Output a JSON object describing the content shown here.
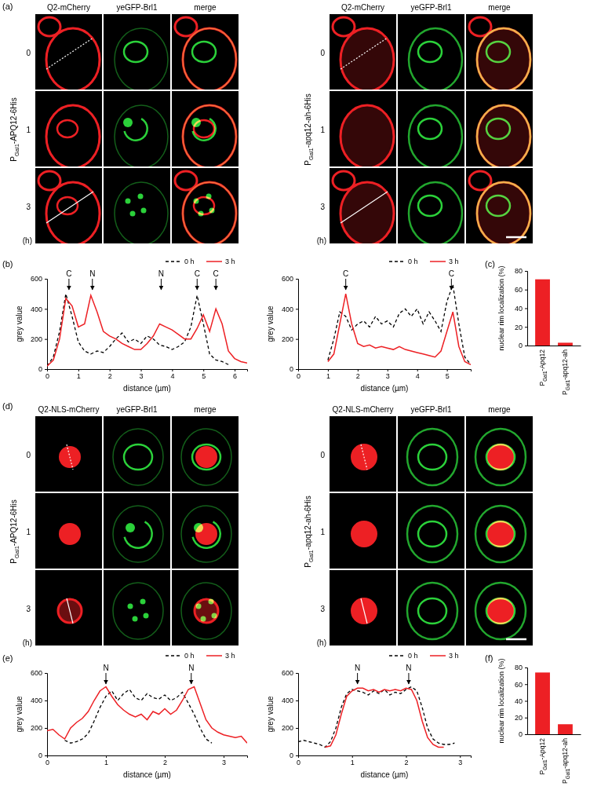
{
  "chart_data": [
    {
      "type": "line",
      "xlabel": "distance (µm)",
      "ylabel": "grey value",
      "x": [
        0,
        0.2,
        0.4,
        0.6,
        0.8,
        1,
        1.2,
        1.4,
        1.6,
        1.8,
        2,
        2.2,
        2.4,
        2.6,
        2.8,
        3,
        3.2,
        3.4,
        3.6,
        3.8,
        4,
        4.2,
        4.4,
        4.6,
        4.8,
        5,
        5.2,
        5.4,
        5.6,
        5.8,
        6,
        6.2,
        6.4
      ],
      "xlim": [
        0,
        6.4
      ],
      "xticks": [
        0,
        1,
        2,
        3,
        4,
        5,
        6
      ],
      "ylim": [
        0,
        600
      ],
      "yticks": [
        0,
        200,
        400,
        600
      ],
      "legend": "upper right",
      "series": [
        {
          "name": "0 h",
          "color": "#000000",
          "line_style": "dashed",
          "values": [
            20,
            80,
            250,
            500,
            350,
            180,
            120,
            100,
            120,
            110,
            150,
            200,
            240,
            180,
            200,
            170,
            220,
            200,
            160,
            150,
            130,
            150,
            180,
            280,
            490,
            300,
            100,
            60,
            50,
            30,
            null,
            null,
            null
          ]
        },
        {
          "name": "3 h",
          "color": "#ed2024",
          "line_style": "solid",
          "values": [
            20,
            60,
            200,
            470,
            420,
            280,
            300,
            490,
            380,
            250,
            220,
            200,
            170,
            150,
            130,
            130,
            170,
            220,
            300,
            280,
            260,
            230,
            200,
            200,
            270,
            360,
            250,
            400,
            300,
            120,
            70,
            50,
            40
          ]
        }
      ],
      "annotations": [
        {
          "text": "C",
          "x": 0.7
        },
        {
          "text": "N",
          "x": 1.45
        },
        {
          "text": "N",
          "x": 3.65
        },
        {
          "text": "C",
          "x": 4.8
        },
        {
          "text": "C",
          "x": 5.4
        }
      ]
    },
    {
      "type": "line",
      "xlabel": "distance (µm)",
      "ylabel": "grey value",
      "x": [
        0,
        0.2,
        0.4,
        0.6,
        0.8,
        1,
        1.2,
        1.4,
        1.6,
        1.8,
        2,
        2.2,
        2.4,
        2.6,
        2.8,
        3,
        3.2,
        3.4,
        3.6,
        3.8,
        4,
        4.2,
        4.4,
        4.6,
        4.8,
        5,
        5.2,
        5.4,
        5.6,
        5.8
      ],
      "xlim": [
        0,
        5.8
      ],
      "xticks": [
        0,
        1,
        2,
        3,
        4,
        5
      ],
      "ylim": [
        0,
        600
      ],
      "yticks": [
        0,
        200,
        400,
        600
      ],
      "legend": "upper right",
      "series": [
        {
          "name": "0 h",
          "color": "#000000",
          "line_style": "dashed",
          "values": [
            null,
            null,
            null,
            null,
            null,
            60,
            200,
            380,
            350,
            260,
            300,
            320,
            280,
            350,
            300,
            320,
            280,
            370,
            400,
            350,
            400,
            300,
            380,
            320,
            250,
            450,
            560,
            300,
            80,
            30
          ]
        },
        {
          "name": "3 h",
          "color": "#ed2024",
          "line_style": "solid",
          "values": [
            null,
            null,
            null,
            null,
            null,
            50,
            100,
            300,
            500,
            300,
            170,
            150,
            160,
            140,
            150,
            140,
            130,
            150,
            130,
            120,
            110,
            100,
            90,
            80,
            120,
            250,
            380,
            150,
            50,
            30
          ]
        }
      ],
      "annotations": [
        {
          "text": "C",
          "x": 1.6
        },
        {
          "text": "C",
          "x": 5.15
        }
      ]
    },
    {
      "type": "bar",
      "ylabel": "nuclear rim localization (%)",
      "categories": [
        "PGal1-Apq12",
        "PGal1-apq12-ah"
      ],
      "values": [
        71,
        3
      ],
      "color": "#ed2024",
      "ylim": [
        0,
        80
      ],
      "yticks": [
        0,
        20,
        40,
        60,
        80
      ]
    },
    {
      "type": "line",
      "xlabel": "distance (µm)",
      "ylabel": "grey value",
      "x": [
        0,
        0.1,
        0.2,
        0.3,
        0.4,
        0.5,
        0.6,
        0.7,
        0.8,
        0.9,
        1,
        1.1,
        1.2,
        1.3,
        1.4,
        1.5,
        1.6,
        1.7,
        1.8,
        1.9,
        2,
        2.1,
        2.2,
        2.3,
        2.4,
        2.5,
        2.6,
        2.7,
        2.8,
        2.9,
        3,
        3.1,
        3.2,
        3.3,
        3.4
      ],
      "xlim": [
        0,
        3.4
      ],
      "xticks": [
        0,
        1,
        2,
        3
      ],
      "ylim": [
        0,
        600
      ],
      "yticks": [
        0,
        200,
        400,
        600
      ],
      "legend": "upper right",
      "series": [
        {
          "name": "0 h",
          "color": "#000000",
          "line_style": "dashed",
          "values": [
            null,
            null,
            null,
            110,
            90,
            100,
            120,
            160,
            250,
            350,
            430,
            470,
            400,
            450,
            480,
            420,
            400,
            450,
            420,
            410,
            440,
            400,
            420,
            460,
            380,
            300,
            200,
            120,
            90,
            null,
            null,
            null,
            null,
            null,
            null
          ]
        },
        {
          "name": "3 h",
          "color": "#ed2024",
          "line_style": "solid",
          "values": [
            180,
            190,
            150,
            120,
            200,
            240,
            270,
            320,
            400,
            470,
            500,
            430,
            370,
            330,
            300,
            280,
            300,
            260,
            320,
            300,
            340,
            300,
            330,
            400,
            480,
            500,
            380,
            260,
            200,
            170,
            150,
            140,
            130,
            140,
            90
          ]
        }
      ],
      "annotations": [
        {
          "text": "N",
          "x": 1.0
        },
        {
          "text": "N",
          "x": 2.45
        }
      ]
    },
    {
      "type": "line",
      "xlabel": "distance (µm)",
      "ylabel": "grey value",
      "x": [
        0,
        0.1,
        0.2,
        0.3,
        0.4,
        0.5,
        0.6,
        0.7,
        0.8,
        0.9,
        1,
        1.1,
        1.2,
        1.3,
        1.4,
        1.5,
        1.6,
        1.7,
        1.8,
        1.9,
        2,
        2.1,
        2.2,
        2.3,
        2.4,
        2.5,
        2.6,
        2.7,
        2.8,
        2.9,
        3,
        3.1,
        3.2
      ],
      "xlim": [
        0,
        3.2
      ],
      "xticks": [
        0,
        1,
        2,
        3
      ],
      "ylim": [
        0,
        600
      ],
      "yticks": [
        0,
        200,
        400,
        600
      ],
      "legend": "upper right",
      "series": [
        {
          "name": "0 h",
          "color": "#000000",
          "line_style": "dashed",
          "values": [
            100,
            110,
            100,
            90,
            80,
            60,
            100,
            200,
            350,
            450,
            480,
            470,
            460,
            440,
            470,
            450,
            480,
            440,
            460,
            450,
            480,
            500,
            470,
            350,
            200,
            120,
            90,
            80,
            80,
            90,
            null,
            null,
            null
          ]
        },
        {
          "name": "3 h",
          "color": "#ed2024",
          "line_style": "solid",
          "values": [
            null,
            null,
            null,
            null,
            null,
            60,
            70,
            150,
            300,
            430,
            470,
            490,
            490,
            470,
            480,
            460,
            480,
            470,
            480,
            470,
            490,
            480,
            400,
            250,
            130,
            80,
            60,
            60,
            null,
            null,
            null,
            null,
            null
          ]
        }
      ],
      "annotations": [
        {
          "text": "N",
          "x": 1.1
        },
        {
          "text": "N",
          "x": 2.05
        }
      ]
    },
    {
      "type": "bar",
      "ylabel": "nuclear rim localization (%)",
      "categories": [
        "PGal1-Apq12",
        "PGal1-apq12-ah"
      ],
      "values": [
        74,
        12
      ],
      "color": "#ed2024",
      "ylim": [
        0,
        80
      ],
      "yticks": [
        0,
        20,
        40,
        60,
        80
      ]
    }
  ],
  "image_panels": [
    {
      "row_label": "PGal1-APQ12-6His",
      "columns": [
        "Q2-mCherry",
        "yeGFP-Brl1",
        "merge"
      ],
      "times": [
        "0",
        "1",
        "3"
      ],
      "time_unit": "(h)"
    },
    {
      "row_label": "PGal1-apq12-ah-6His",
      "columns": [
        "Q2-mCherry",
        "yeGFP-Brl1",
        "merge"
      ],
      "times": [
        "0",
        "1",
        "3"
      ],
      "time_unit": "(h)"
    },
    {
      "row_label": "PGal1-APQ12-6His",
      "columns": [
        "Q2-NLS-mCherry",
        "yeGFP-Brl1",
        "merge"
      ],
      "times": [
        "0",
        "1",
        "3"
      ],
      "time_unit": "(h)"
    },
    {
      "row_label": "PGal1-apq12-ah-6His",
      "columns": [
        "Q2-NLS-mCherry",
        "yeGFP-Brl1",
        "merge"
      ],
      "times": [
        "0",
        "1",
        "3"
      ],
      "time_unit": "(h)"
    }
  ],
  "panel_labels": [
    "(a)",
    "(b)",
    "(c)",
    "(d)",
    "(e)",
    "(f)"
  ]
}
